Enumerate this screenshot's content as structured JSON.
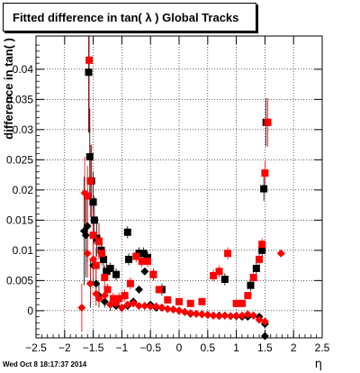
{
  "chart_data": {
    "type": "scatter",
    "title": "Fitted difference in tan( λ )  Global Tracks",
    "xlabel": "η",
    "ylabel": "difference in tan( )",
    "xlim": [
      -2.5,
      2.5
    ],
    "ylim": [
      -0.0045,
      0.0455
    ],
    "x_ticks": [
      -2.5,
      -2,
      -1.5,
      -1,
      -0.5,
      0,
      0.5,
      1,
      1.5,
      2,
      2.5
    ],
    "x_tick_labels": [
      "−2.5",
      "−2",
      "−1.5",
      "−1",
      "−0.5",
      "0",
      "0.5",
      "1",
      "1.5",
      "2",
      "2.5"
    ],
    "y_ticks": [
      0,
      0.005,
      0.01,
      0.015,
      0.02,
      0.025,
      0.03,
      0.035,
      0.04
    ],
    "y_tick_labels": [
      "0",
      "0.005",
      "0.01",
      "0.015",
      "0.02",
      "0.025",
      "0.03",
      "0.035",
      "0.04"
    ],
    "grid": true,
    "series": [
      {
        "marker": "square",
        "color": "#000000",
        "points": [
          [
            -1.58,
            0.0395,
            0.01
          ],
          [
            -1.56,
            0.0255,
            0.008
          ],
          [
            -1.53,
            0.0215,
            0.006
          ],
          [
            -1.5,
            0.018,
            0.005
          ],
          [
            -1.48,
            0.015,
            0.004
          ],
          [
            -1.44,
            0.012,
            0.003
          ],
          [
            -1.4,
            0.0115,
            0.003
          ],
          [
            -1.36,
            0.01,
            0.002
          ],
          [
            -1.32,
            0.0085,
            0.002
          ],
          [
            -1.27,
            0.0065,
            0.0015
          ],
          [
            -1.2,
            0.007,
            0.001
          ],
          [
            -1.1,
            0.006,
            0.001
          ],
          [
            -0.9,
            0.013,
            0.001
          ],
          [
            -0.88,
            0.0085,
            0.001
          ],
          [
            -0.7,
            0.0095,
            0.001
          ],
          [
            -0.62,
            0.0095,
            0.001
          ],
          [
            -0.55,
            0.0088,
            0.001
          ],
          [
            -0.45,
            0.006,
            0.001
          ],
          [
            -0.3,
            0.0035,
            0.001
          ],
          [
            0.8,
            0.0052,
            0.001
          ],
          [
            1.25,
            0.0042,
            0.001
          ],
          [
            1.35,
            0.007,
            0.001
          ],
          [
            1.45,
            0.01,
            0.001
          ],
          [
            1.48,
            0.0202,
            0.002
          ],
          [
            1.52,
            0.0312,
            0.004
          ]
        ]
      },
      {
        "marker": "diamond",
        "color": "#000000",
        "points": [
          [
            -1.66,
            0.0132,
            0.009
          ],
          [
            -1.63,
            0.0125,
            0.007
          ],
          [
            -1.6,
            0.014,
            0.006
          ],
          [
            -1.55,
            0.0045,
            0.004
          ],
          [
            -1.5,
            0.0075,
            0.003
          ],
          [
            -1.45,
            0.0045,
            0.003
          ],
          [
            -1.4,
            0.0025,
            0.002
          ],
          [
            -1.3,
            0.0015,
            0.001
          ],
          [
            -1.2,
            0.001,
            0.001
          ],
          [
            -1.1,
            0.0008,
            0.0
          ],
          [
            -1.0,
            0.0005,
            0.0
          ],
          [
            -0.9,
            0.0008,
            0.0
          ],
          [
            -0.8,
            0.0015,
            0.0
          ],
          [
            -0.7,
            0.0035,
            0.0
          ],
          [
            -0.6,
            0.0065,
            0.0
          ],
          [
            -0.5,
            0.001,
            0.0
          ],
          [
            -0.4,
            0.0005,
            0.0
          ],
          [
            -0.3,
            0.0005,
            0.0
          ],
          [
            -0.1,
            0.0002,
            0.0
          ],
          [
            0.0,
            0.0,
            0.0
          ],
          [
            0.1,
            -0.0002,
            0.0
          ],
          [
            0.2,
            -0.0005,
            0.0
          ],
          [
            0.3,
            -0.0005,
            0.0
          ],
          [
            0.4,
            -0.0006,
            0.0
          ],
          [
            0.5,
            -0.0007,
            0.0
          ],
          [
            0.6,
            -0.0008,
            0.0
          ],
          [
            0.7,
            -0.0008,
            0.0
          ],
          [
            0.8,
            -0.0008,
            0.0
          ],
          [
            0.9,
            -0.0009,
            0.0
          ],
          [
            1.0,
            -0.0009,
            0.0
          ],
          [
            1.1,
            -0.001,
            0.0
          ],
          [
            1.2,
            -0.001,
            0.0
          ],
          [
            1.3,
            -0.0008,
            0.0
          ],
          [
            1.4,
            -0.001,
            0.0
          ],
          [
            1.5,
            -0.0022,
            0.0
          ],
          [
            1.5,
            -0.0042,
            0.0
          ]
        ]
      },
      {
        "marker": "square",
        "color": "#ff0000",
        "points": [
          [
            -1.57,
            0.0415,
            0.012
          ],
          [
            -1.6,
            0.019,
            0.005
          ],
          [
            -1.55,
            0.0215,
            0.006
          ],
          [
            -1.5,
            0.0125,
            0.004
          ],
          [
            -1.45,
            0.0075,
            0.003
          ],
          [
            -1.4,
            0.0115,
            0.003
          ],
          [
            -1.35,
            0.0095,
            0.002
          ],
          [
            -1.3,
            0.0055,
            0.002
          ],
          [
            -1.25,
            0.0035,
            0.001
          ],
          [
            -1.15,
            0.002,
            0.001
          ],
          [
            -1.05,
            0.002,
            0.001
          ],
          [
            -0.95,
            0.0025,
            0.001
          ],
          [
            -0.85,
            0.0045,
            0.001
          ],
          [
            -0.75,
            0.009,
            0.001
          ],
          [
            -0.65,
            0.0082,
            0.001
          ],
          [
            -0.55,
            0.0082,
            0.001
          ],
          [
            -0.45,
            0.006,
            0.001
          ],
          [
            -0.35,
            0.0035,
            0.0005
          ],
          [
            -0.2,
            0.0018,
            0.0
          ],
          [
            0.0,
            0.0015,
            0.0
          ],
          [
            0.2,
            0.0012,
            0.0
          ],
          [
            0.4,
            0.0015,
            0.0
          ],
          [
            0.6,
            0.0058,
            0.001
          ],
          [
            0.7,
            0.0065,
            0.001
          ],
          [
            0.85,
            0.0095,
            0.001
          ],
          [
            1.0,
            0.0012,
            0.0
          ],
          [
            1.1,
            0.0012,
            0.0
          ],
          [
            1.2,
            0.0025,
            0.0
          ],
          [
            1.3,
            0.0055,
            0.001
          ],
          [
            1.4,
            0.0085,
            0.001
          ],
          [
            1.45,
            0.011,
            0.001
          ],
          [
            1.5,
            0.0228,
            0.002
          ],
          [
            1.55,
            0.0312,
            0.004
          ]
        ]
      },
      {
        "marker": "diamond",
        "color": "#ff0000",
        "points": [
          [
            -1.7,
            0.0005,
            0.004
          ],
          [
            -1.65,
            0.0195,
            0.006
          ],
          [
            -1.6,
            0.0095,
            0.004
          ],
          [
            -1.55,
            0.0045,
            0.003
          ],
          [
            -1.5,
            0.0085,
            0.003
          ],
          [
            -1.45,
            0.0028,
            0.002
          ],
          [
            -1.4,
            0.002,
            0.001
          ],
          [
            -1.3,
            0.0025,
            0.001
          ],
          [
            -1.2,
            0.001,
            0.0
          ],
          [
            -1.1,
            0.0012,
            0.0
          ],
          [
            -1.0,
            0.0005,
            0.0
          ],
          [
            -0.9,
            0.001,
            0.0
          ],
          [
            -0.8,
            0.0012,
            0.0
          ],
          [
            -0.7,
            0.0008,
            0.0
          ],
          [
            -0.6,
            0.0008,
            0.0
          ],
          [
            -0.5,
            0.0007,
            0.0
          ],
          [
            -0.4,
            0.0007,
            0.0
          ],
          [
            -0.3,
            0.0005,
            0.0
          ],
          [
            -0.2,
            0.0003,
            0.0
          ],
          [
            -0.1,
            0.0002,
            0.0
          ],
          [
            0.0,
            0.0,
            0.0
          ],
          [
            0.1,
            -0.0002,
            0.0
          ],
          [
            0.2,
            -0.0004,
            0.0
          ],
          [
            0.3,
            -0.0005,
            0.0
          ],
          [
            0.4,
            -0.0006,
            0.0
          ],
          [
            0.5,
            -0.0007,
            0.0
          ],
          [
            0.6,
            -0.0008,
            0.0
          ],
          [
            0.7,
            -0.0009,
            0.0
          ],
          [
            0.8,
            -0.0008,
            0.0
          ],
          [
            0.9,
            -0.0009,
            0.0
          ],
          [
            1.0,
            -0.0008,
            0.0
          ],
          [
            1.1,
            -0.0008,
            0.0
          ],
          [
            1.2,
            -0.0006,
            0.0
          ],
          [
            1.3,
            -0.0008,
            0.0
          ],
          [
            1.4,
            -0.0015,
            0.0
          ],
          [
            1.5,
            -0.0018,
            0.0
          ],
          [
            1.78,
            0.0095,
            0.0
          ]
        ]
      }
    ]
  },
  "footer": {
    "datestamp": "Wed Oct  8 18:17:37 2014"
  }
}
